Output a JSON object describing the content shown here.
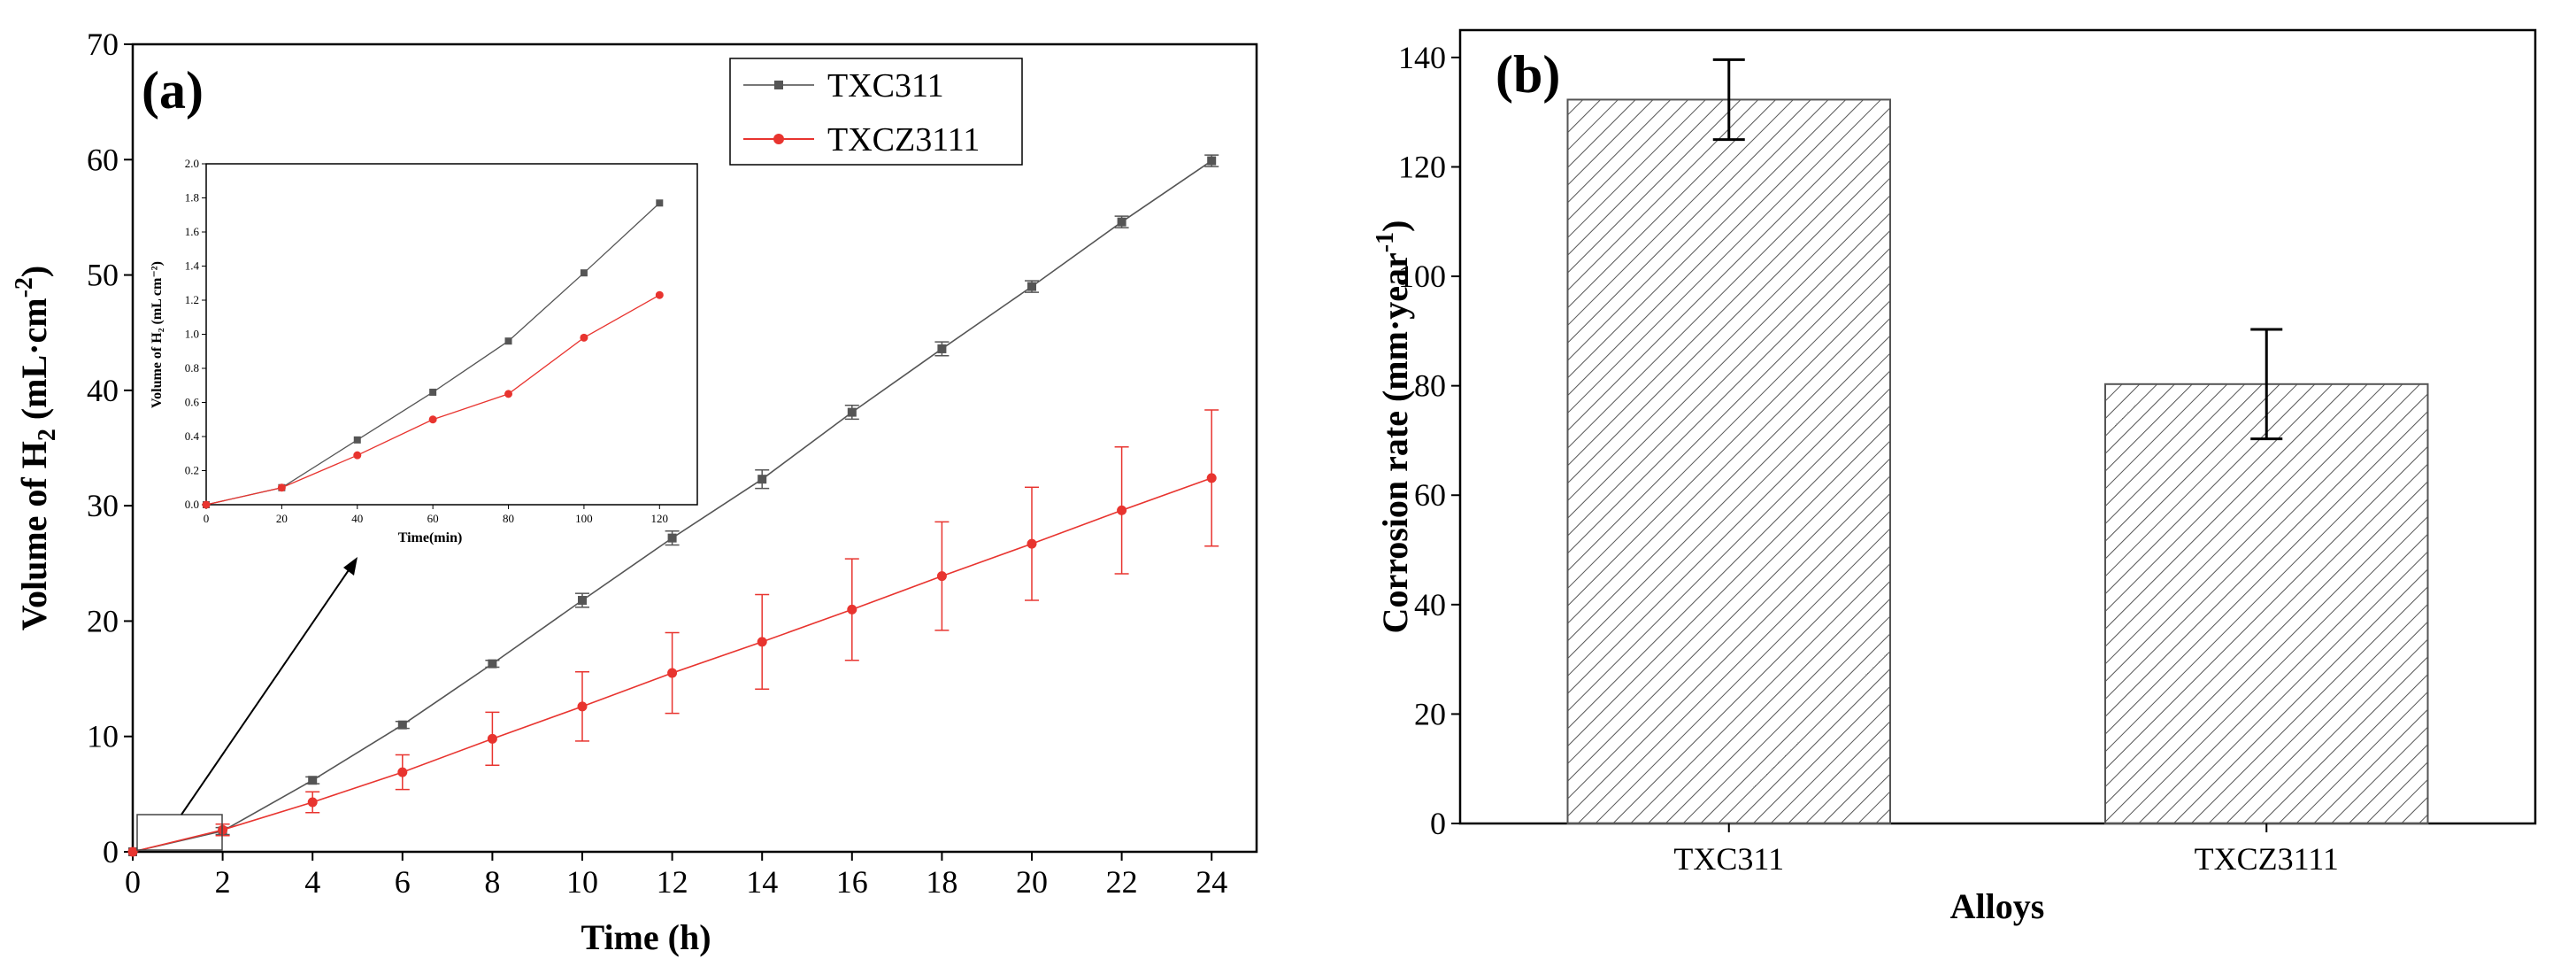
{
  "chart_data": [
    {
      "panel_label": "(a)",
      "type": "line",
      "xlabel": "Time (h)",
      "ylabel_main": "Volume of H",
      "ylabel_sub": "2",
      "ylabel_unit_open": " (mL·cm",
      "ylabel_unit_sup": "-2",
      "ylabel_unit_close": ")",
      "xlim": [
        0,
        25
      ],
      "ylim": [
        0,
        70
      ],
      "xticks": [
        "0",
        "2",
        "4",
        "6",
        "8",
        "10",
        "12",
        "14",
        "16",
        "18",
        "20",
        "22",
        "24"
      ],
      "yticks": [
        "0",
        "10",
        "20",
        "30",
        "40",
        "50",
        "60",
        "70"
      ],
      "legend_placement": "top-right",
      "series": [
        {
          "name": "TXC311",
          "color": "#555555",
          "marker": "square",
          "x": [
            0,
            2,
            4,
            6,
            8,
            10,
            12,
            14,
            16,
            18,
            20,
            22,
            24
          ],
          "y": [
            0,
            1.8,
            6.2,
            11.0,
            16.3,
            21.8,
            27.2,
            32.3,
            38.1,
            43.6,
            49.0,
            54.6,
            59.9
          ],
          "err": [
            0.05,
            0.3,
            0.3,
            0.3,
            0.3,
            0.6,
            0.6,
            0.8,
            0.6,
            0.6,
            0.5,
            0.5,
            0.5
          ]
        },
        {
          "name": "TXCZ3111",
          "color": "#e8342f",
          "marker": "circle",
          "x": [
            0,
            2,
            4,
            6,
            8,
            10,
            12,
            14,
            16,
            18,
            20,
            22,
            24
          ],
          "y": [
            0,
            1.9,
            4.3,
            6.9,
            9.8,
            12.6,
            15.5,
            18.2,
            21.0,
            23.9,
            26.7,
            29.6,
            32.4
          ],
          "err": [
            0.05,
            0.5,
            0.9,
            1.5,
            2.3,
            3.0,
            3.5,
            4.1,
            4.4,
            4.7,
            4.9,
            5.5,
            5.9
          ]
        }
      ],
      "inset": {
        "type": "line",
        "xlabel": "Time(min)",
        "ylabel": "Volume of H₂ (mL cm⁻²)",
        "xlim": [
          0,
          130
        ],
        "ylim": [
          0,
          2.0
        ],
        "xticks": [
          "0",
          "20",
          "40",
          "60",
          "80",
          "100",
          "120"
        ],
        "yticks": [
          "0.0",
          "0.2",
          "0.4",
          "0.6",
          "0.8",
          "1.0",
          "1.2",
          "1.4",
          "1.6",
          "1.8",
          "2.0"
        ],
        "series": [
          {
            "name": "TXC311",
            "color": "#555555",
            "marker": "square",
            "x": [
              0,
              20,
              40,
              60,
              80,
              100,
              120
            ],
            "y": [
              0,
              0.1,
              0.38,
              0.66,
              0.96,
              1.36,
              1.77
            ]
          },
          {
            "name": "TXCZ3111",
            "color": "#e8342f",
            "marker": "circle",
            "x": [
              0,
              20,
              40,
              60,
              80,
              100,
              120
            ],
            "y": [
              0,
              0.1,
              0.29,
              0.5,
              0.65,
              0.98,
              1.23
            ]
          }
        ]
      }
    },
    {
      "panel_label": "(b)",
      "type": "bar",
      "xlabel": "Alloys",
      "ylabel_main": "Corrosion rate (mm·year",
      "ylabel_sup": "-1",
      "ylabel_close": ")",
      "categories": [
        "TXC311",
        "TXCZ3111"
      ],
      "values": [
        132.3,
        80.3
      ],
      "err": [
        7.3,
        10.0
      ],
      "ylim": [
        0,
        145
      ],
      "yticks": [
        "0",
        "20",
        "40",
        "60",
        "80",
        "100",
        "120",
        "140"
      ],
      "bar_fill": "hatched",
      "bar_color": "#555555"
    }
  ]
}
